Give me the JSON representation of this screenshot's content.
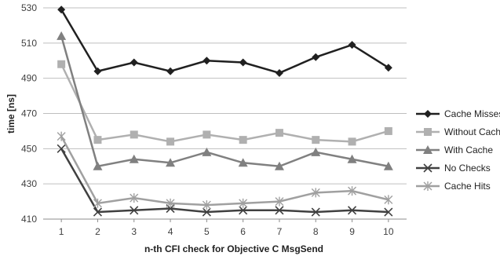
{
  "chart_data": {
    "type": "line",
    "title": "",
    "xlabel": "n-th CFI check for Objective C MsgSend",
    "ylabel": "time [ns]",
    "x": [
      1,
      2,
      3,
      4,
      5,
      6,
      7,
      8,
      9,
      10
    ],
    "xlim": [
      0.5,
      10.5
    ],
    "ylim": [
      410,
      530
    ],
    "yticks": [
      410,
      430,
      450,
      470,
      490,
      510,
      530
    ],
    "grid": "horizontal",
    "legend_position": "right",
    "series": [
      {
        "name": "Cache Misses",
        "color": "#202020",
        "marker": "diamond",
        "values": [
          529,
          494,
          499,
          494,
          500,
          499,
          493,
          502,
          509,
          496
        ]
      },
      {
        "name": "Without Cache",
        "color": "#b0b0b0",
        "marker": "square",
        "values": [
          498,
          455,
          458,
          454,
          458,
          455,
          459,
          455,
          454,
          460
        ]
      },
      {
        "name": "With Cache",
        "color": "#808080",
        "marker": "triangle",
        "values": [
          514,
          440,
          444,
          442,
          448,
          442,
          440,
          448,
          444,
          440
        ]
      },
      {
        "name": "No Checks",
        "color": "#404040",
        "marker": "x",
        "values": [
          450,
          414,
          415,
          416,
          414,
          415,
          415,
          414,
          415,
          414
        ]
      },
      {
        "name": "Cache Hits",
        "color": "#a0a0a0",
        "marker": "asterisk",
        "values": [
          457,
          419,
          422,
          419,
          418,
          419,
          420,
          425,
          426,
          421
        ]
      }
    ]
  }
}
